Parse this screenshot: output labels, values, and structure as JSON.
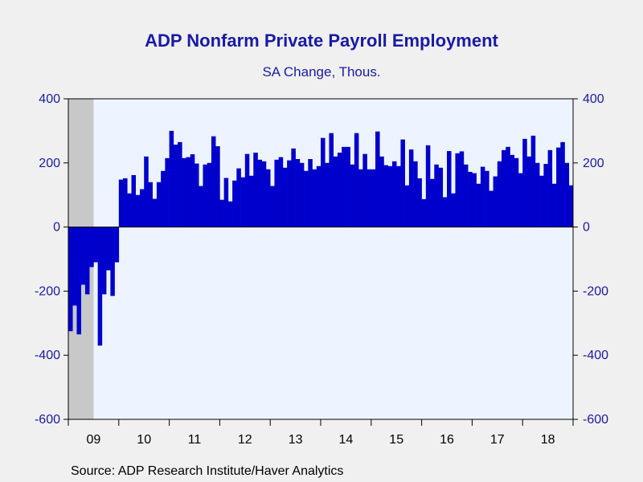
{
  "chart_data": {
    "type": "bar",
    "title": "ADP Nonfarm Private Payroll Employment",
    "subtitle": "SA Change, Thous.",
    "source": "Source:  ADP Research Institute/Haver Analytics",
    "xlabel": "",
    "ylabel": "",
    "ylim": [
      -600,
      400
    ],
    "yticks": [
      -600,
      -400,
      -200,
      0,
      200,
      400
    ],
    "ytick_labels": [
      "-600",
      "-400",
      "-200",
      "0",
      "200",
      "400"
    ],
    "dual_y_axis": true,
    "grid": false,
    "colors": {
      "bar": "#0000cc",
      "plot_bg": "#eef4ff",
      "recession": "#c8c8c8",
      "text": "#1a1aa6"
    },
    "recession_shading": {
      "start": "2009-01",
      "end": "2009-06"
    },
    "x_start": "2009-01",
    "x_end": "2018-12",
    "year_labels": [
      "09",
      "10",
      "11",
      "12",
      "13",
      "14",
      "15",
      "16",
      "17",
      "18"
    ],
    "series": [
      {
        "frequency": "monthly",
        "values": [
          -325,
          -245,
          -335,
          -180,
          -210,
          -125,
          -110,
          -370,
          -210,
          -135,
          -215,
          -110,
          148,
          152,
          105,
          162,
          100,
          118,
          220,
          140,
          88,
          140,
          175,
          215,
          300,
          257,
          265,
          215,
          218,
          227,
          198,
          128,
          195,
          200,
          283,
          252,
          85,
          153,
          80,
          145,
          183,
          155,
          228,
          160,
          232,
          210,
          205,
          180,
          128,
          210,
          218,
          185,
          208,
          245,
          212,
          200,
          175,
          212,
          180,
          190,
          278,
          200,
          293,
          220,
          232,
          250,
          250,
          195,
          293,
          180,
          228,
          180,
          180,
          298,
          220,
          193,
          190,
          205,
          190,
          273,
          130,
          242,
          205,
          152,
          87,
          255,
          150,
          195,
          185,
          93,
          237,
          105,
          230,
          236,
          195,
          172,
          168,
          135,
          188,
          175,
          113,
          158,
          205,
          240,
          250,
          225,
          215,
          168,
          275,
          220,
          285,
          200,
          160,
          197,
          240,
          135,
          248,
          265,
          200,
          130
        ]
      }
    ]
  }
}
